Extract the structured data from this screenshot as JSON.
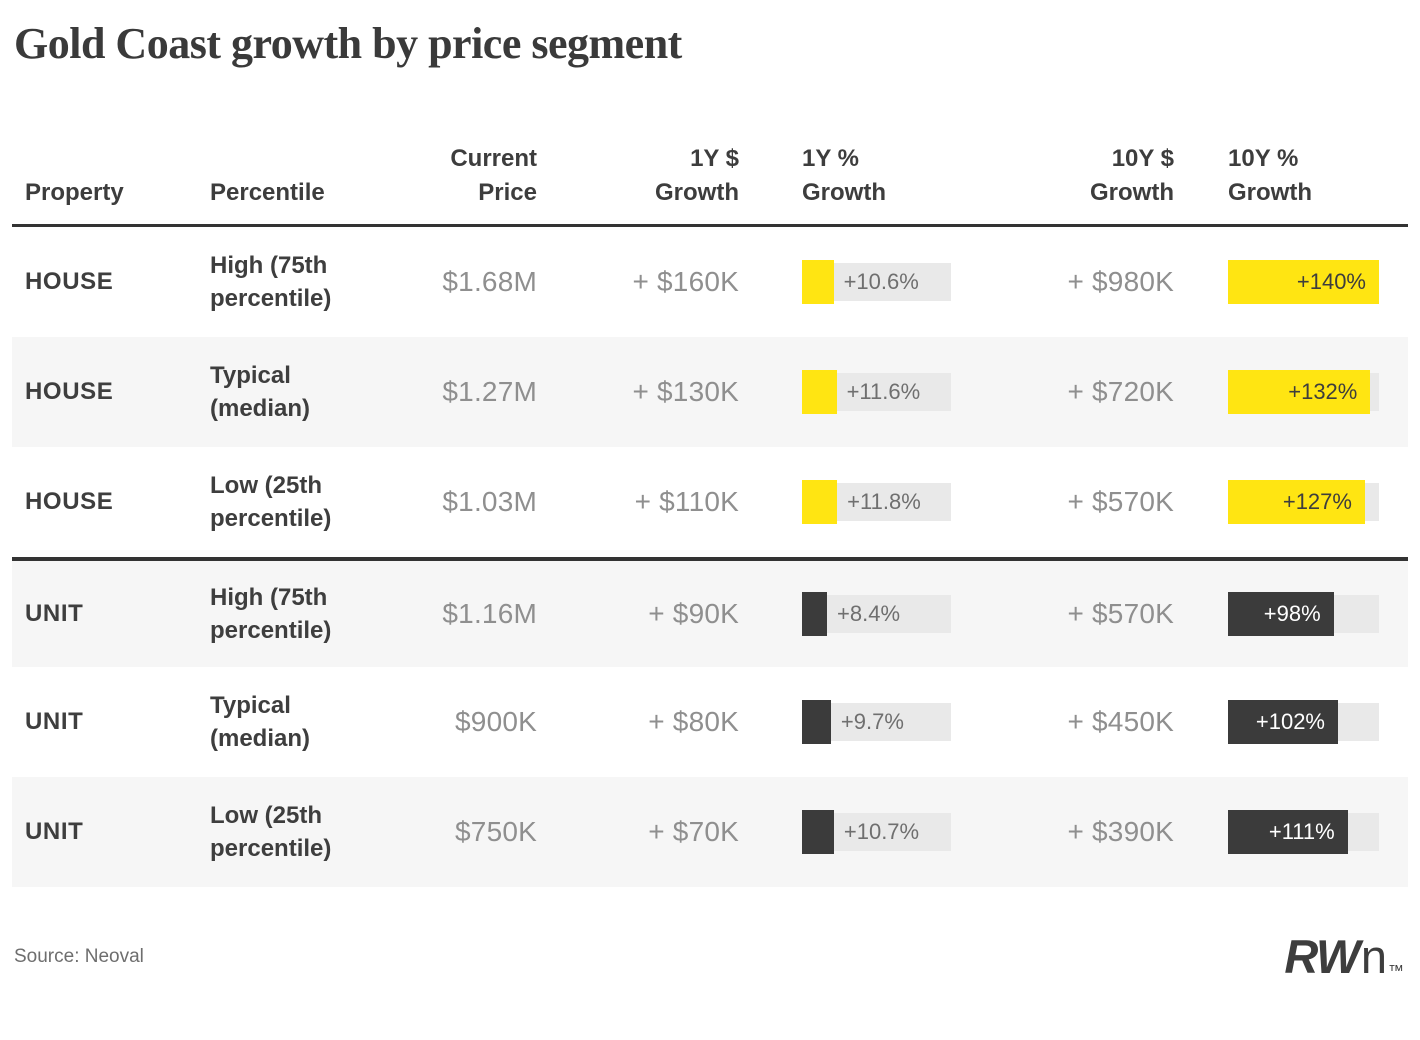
{
  "title": "Gold Coast growth by price segment",
  "source": "Source: Neoval",
  "logo": {
    "bold": "RW",
    "light": "n",
    "tm": "™"
  },
  "colors": {
    "accent_yellow": "#FFE512",
    "accent_dark": "#3B3B3B",
    "bar_track": "#E9E9E9",
    "row_stripe": "#F6F6F6",
    "text_dark": "#3D3D3D",
    "text_muted": "#8F8F8F"
  },
  "table": {
    "headers": [
      [
        "Property"
      ],
      [
        "Percentile"
      ],
      [
        "Current",
        "Price"
      ],
      [
        "1Y $",
        "Growth"
      ],
      [
        "1Y %",
        "Growth"
      ],
      [
        "10Y $",
        "Growth"
      ],
      [
        "10Y %",
        "Growth"
      ]
    ],
    "bar_scales": {
      "growth_1y_pct_max": 50,
      "growth_10y_pct_max": 140
    },
    "rows": [
      {
        "property": "HOUSE",
        "percentile": "High (75th percentile)",
        "current_price": "$1.68M",
        "growth_1y_dollar": "+ $160K",
        "growth_1y_pct": 10.6,
        "growth_1y_pct_label": "+10.6%",
        "growth_10y_dollar": "+ $980K",
        "growth_10y_pct": 140,
        "growth_10y_pct_label": "+140%",
        "bar_color": "yellow"
      },
      {
        "property": "HOUSE",
        "percentile": "Typical (median)",
        "current_price": "$1.27M",
        "growth_1y_dollar": "+ $130K",
        "growth_1y_pct": 11.6,
        "growth_1y_pct_label": "+11.6%",
        "growth_10y_dollar": "+ $720K",
        "growth_10y_pct": 132,
        "growth_10y_pct_label": "+132%",
        "bar_color": "yellow"
      },
      {
        "property": "HOUSE",
        "percentile": "Low (25th percentile)",
        "current_price": "$1.03M",
        "growth_1y_dollar": "+ $110K",
        "growth_1y_pct": 11.8,
        "growth_1y_pct_label": "+11.8%",
        "growth_10y_dollar": "+ $570K",
        "growth_10y_pct": 127,
        "growth_10y_pct_label": "+127%",
        "bar_color": "yellow"
      },
      {
        "property": "UNIT",
        "percentile": "High (75th percentile)",
        "current_price": "$1.16M",
        "growth_1y_dollar": "+ $90K",
        "growth_1y_pct": 8.4,
        "growth_1y_pct_label": "+8.4%",
        "growth_10y_dollar": "+ $570K",
        "growth_10y_pct": 98,
        "growth_10y_pct_label": "+98%",
        "bar_color": "dark"
      },
      {
        "property": "UNIT",
        "percentile": "Typical (median)",
        "current_price": "$900K",
        "growth_1y_dollar": "+ $80K",
        "growth_1y_pct": 9.7,
        "growth_1y_pct_label": "+9.7%",
        "growth_10y_dollar": "+ $450K",
        "growth_10y_pct": 102,
        "growth_10y_pct_label": "+102%",
        "bar_color": "dark"
      },
      {
        "property": "UNIT",
        "percentile": "Low (25th percentile)",
        "current_price": "$750K",
        "growth_1y_dollar": "+ $70K",
        "growth_1y_pct": 10.7,
        "growth_1y_pct_label": "+10.7%",
        "growth_10y_dollar": "+ $390K",
        "growth_10y_pct": 111,
        "growth_10y_pct_label": "+111%",
        "bar_color": "dark"
      }
    ]
  },
  "chart_data": {
    "type": "table",
    "title": "Gold Coast growth by price segment",
    "columns": [
      "Property",
      "Percentile",
      "Current Price",
      "1Y $ Growth",
      "1Y % Growth",
      "10Y $ Growth",
      "10Y % Growth"
    ],
    "rows": [
      [
        "HOUSE",
        "High (75th percentile)",
        "$1.68M",
        "+ $160K",
        "+10.6%",
        "+ $980K",
        "+140%"
      ],
      [
        "HOUSE",
        "Typical (median)",
        "$1.27M",
        "+ $130K",
        "+11.6%",
        "+ $720K",
        "+132%"
      ],
      [
        "HOUSE",
        "Low (25th percentile)",
        "$1.03M",
        "+ $110K",
        "+11.8%",
        "+ $570K",
        "+127%"
      ],
      [
        "UNIT",
        "High (75th percentile)",
        "$1.16M",
        "+ $90K",
        "+8.4%",
        "+ $570K",
        "+98%"
      ],
      [
        "UNIT",
        "Typical (median)",
        "$900K",
        "+ $80K",
        "+9.7%",
        "+ $450K",
        "+102%"
      ],
      [
        "UNIT",
        "Low (25th percentile)",
        "$750K",
        "+ $70K",
        "+10.7%",
        "+ $390K",
        "+111%"
      ]
    ],
    "bar_columns": {
      "1Y % Growth": {
        "values": [
          10.6,
          11.6,
          11.8,
          8.4,
          9.7,
          10.7
        ],
        "scale_max": 50,
        "house_color": "#FFE512",
        "unit_color": "#3B3B3B"
      },
      "10Y % Growth": {
        "values": [
          140,
          132,
          127,
          98,
          102,
          111
        ],
        "scale_max": 140,
        "house_color": "#FFE512",
        "unit_color": "#3B3B3B"
      }
    },
    "source": "Source: Neoval"
  }
}
